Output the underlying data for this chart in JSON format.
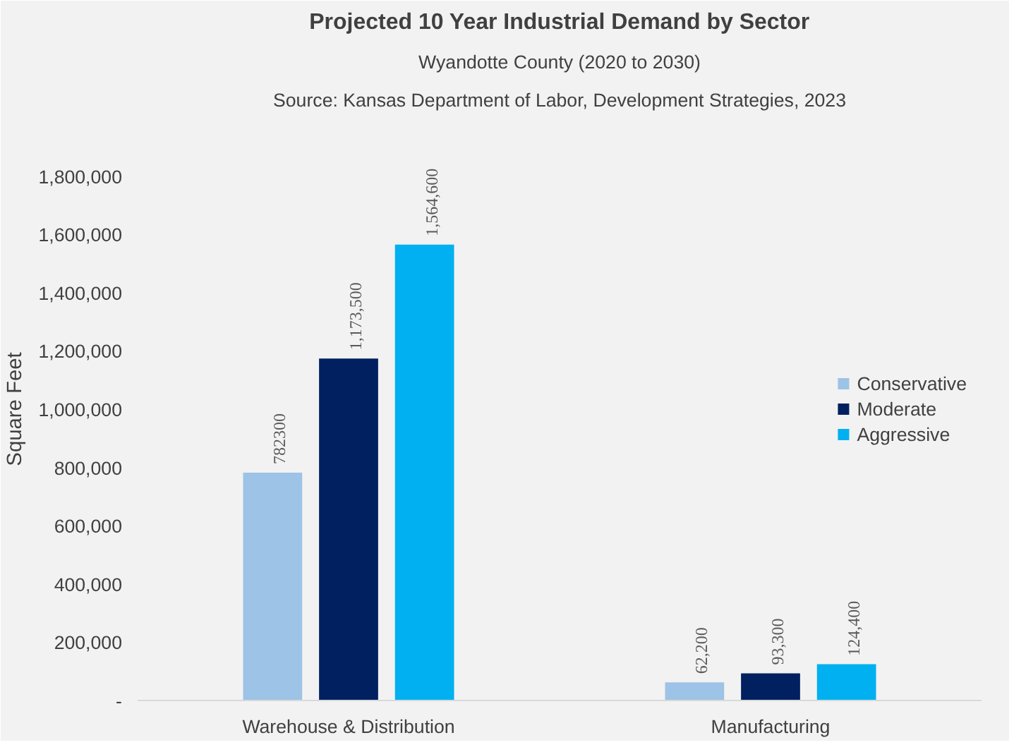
{
  "chart_data": {
    "type": "bar",
    "title": "Projected 10 Year Industrial Demand by Sector",
    "subtitle": "Wyandotte County (2020 to 2030)",
    "annotations": [
      "Source: Kansas Department of Labor, Development Strategies, 2023"
    ],
    "ylabel": "Square Feet",
    "categories": [
      "Warehouse & Distribution",
      "Manufacturing"
    ],
    "series": [
      {
        "name": "Conservative",
        "color": "#9dc3e6",
        "values": [
          782300,
          62200
        ],
        "value_labels": [
          "782300",
          "62,200"
        ]
      },
      {
        "name": "Moderate",
        "color": "#002060",
        "values": [
          1173500,
          93300
        ],
        "value_labels": [
          "1,173,500",
          "93,300"
        ]
      },
      {
        "name": "Aggressive",
        "color": "#00b0f0",
        "values": [
          1564600,
          124400
        ],
        "value_labels": [
          "1,564,600",
          "124,400"
        ]
      }
    ],
    "ylim": [
      0,
      2000000
    ],
    "yticks": [
      {
        "value": 0,
        "label": "-"
      },
      {
        "value": 200000,
        "label": "200,000"
      },
      {
        "value": 400000,
        "label": "400,000"
      },
      {
        "value": 600000,
        "label": "600,000"
      },
      {
        "value": 800000,
        "label": "800,000"
      },
      {
        "value": 1000000,
        "label": "1,000,000"
      },
      {
        "value": 1200000,
        "label": "1,200,000"
      },
      {
        "value": 1400000,
        "label": "1,400,000"
      },
      {
        "value": 1600000,
        "label": "1,600,000"
      },
      {
        "value": 1800000,
        "label": "1,800,000"
      }
    ],
    "legend": "right",
    "grid": false
  }
}
